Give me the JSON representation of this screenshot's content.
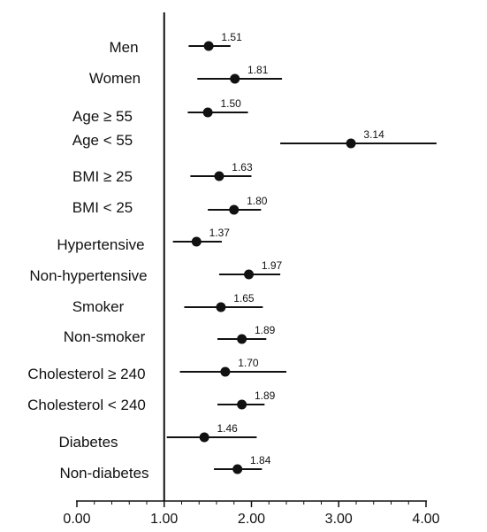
{
  "chart_data": {
    "type": "forest",
    "title": "",
    "xlabel": "",
    "ylabel": "",
    "xlim": [
      0,
      4
    ],
    "xticks": [
      "0.00",
      "1.00",
      "2.00",
      "3.00",
      "4.00"
    ],
    "reference_line": 1.0,
    "grid": false,
    "rows": [
      {
        "label": "Men",
        "value": 1.51,
        "value_label": "1.51",
        "ci": [
          1.28,
          1.76
        ]
      },
      {
        "label": "Women",
        "value": 1.81,
        "value_label": "1.81",
        "ci": [
          1.38,
          2.35
        ]
      },
      {
        "label": "Age ≥ 55",
        "value": 1.5,
        "value_label": "1.50",
        "ci": [
          1.27,
          1.96
        ]
      },
      {
        "label": "Age < 55",
        "value": 3.14,
        "value_label": "3.14",
        "ci": [
          2.33,
          4.12
        ]
      },
      {
        "label": "BMI ≥ 25",
        "value": 1.63,
        "value_label": "1.63",
        "ci": [
          1.3,
          2.0
        ]
      },
      {
        "label": "BMI < 25",
        "value": 1.8,
        "value_label": "1.80",
        "ci": [
          1.5,
          2.11
        ]
      },
      {
        "label": "Hypertensive",
        "value": 1.37,
        "value_label": "1.37",
        "ci": [
          1.1,
          1.66
        ]
      },
      {
        "label": "Non-hypertensive",
        "value": 1.97,
        "value_label": "1.97",
        "ci": [
          1.63,
          2.33
        ]
      },
      {
        "label": "Smoker",
        "value": 1.65,
        "value_label": "1.65",
        "ci": [
          1.23,
          2.13
        ]
      },
      {
        "label": "Non-smoker",
        "value": 1.89,
        "value_label": "1.89",
        "ci": [
          1.61,
          2.17
        ]
      },
      {
        "label": "Cholesterol ≥ 240",
        "value": 1.7,
        "value_label": "1.70",
        "ci": [
          1.18,
          2.4
        ]
      },
      {
        "label": "Cholesterol < 240",
        "value": 1.89,
        "value_label": "1.89",
        "ci": [
          1.61,
          2.15
        ]
      },
      {
        "label": "Diabetes",
        "value": 1.46,
        "value_label": "1.46",
        "ci": [
          1.03,
          2.06
        ]
      },
      {
        "label": "Non-diabetes",
        "value": 1.84,
        "value_label": "1.84",
        "ci": [
          1.57,
          2.12
        ]
      }
    ]
  }
}
